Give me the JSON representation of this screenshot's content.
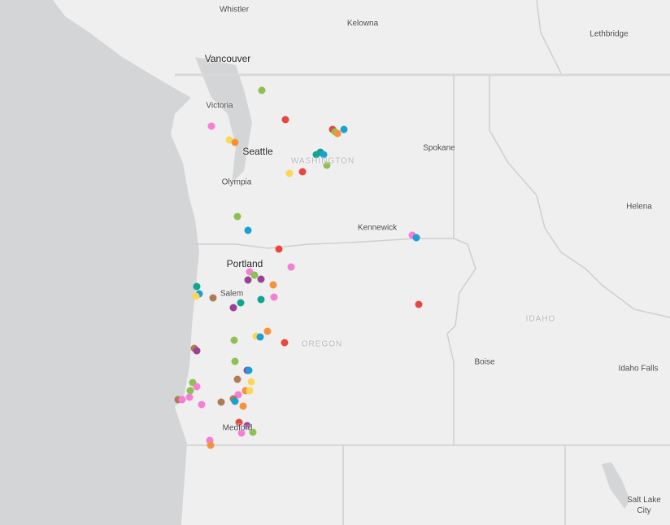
{
  "cities": [
    "Whistler",
    "Kelowna",
    "Lethbridge",
    "Vancouver",
    "Victoria",
    "Seattle",
    "Spokane",
    "Olympia",
    "Helena",
    "Kennewick",
    "Portland",
    "Salem",
    "Boise",
    "Idaho Falls",
    "Medford",
    "Salt Lake City"
  ],
  "regions": [
    "WASHINGTON",
    "OREGON",
    "IDAHO"
  ]
}
